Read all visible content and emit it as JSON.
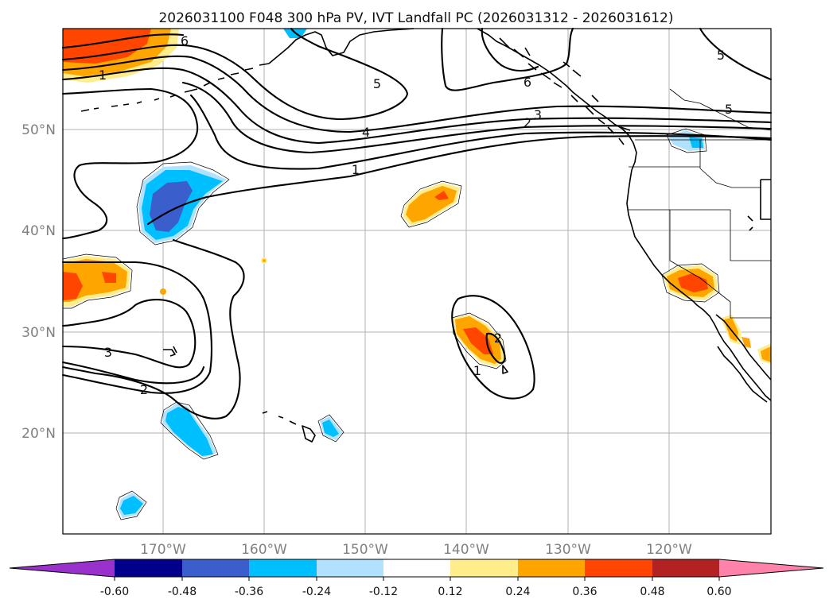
{
  "title": "2026031100 F048 300 hPa PV, IVT Landfall PC (2026031312 - 2026031612)",
  "lat_labels": [
    "50°N",
    "40°N",
    "30°N",
    "20°N"
  ],
  "lon_labels": [
    "170°W",
    "160°W",
    "150°W",
    "140°W",
    "130°W",
    "120°W"
  ],
  "contour_labels": {
    "c6a": "6",
    "c1a": "1",
    "c5a": "5",
    "c4a": "4",
    "c1b": "1",
    "c6b": "6",
    "c3a": "3",
    "c2a": "2",
    "c5b": "5",
    "c5c": "5",
    "c3b": "3",
    "c2b": "2",
    "c2c": "2",
    "c1c": "1"
  },
  "colorbar": {
    "labels": [
      "-0.60",
      "-0.48",
      "-0.36",
      "-0.24",
      "-0.12",
      "0.12",
      "0.24",
      "0.36",
      "0.48",
      "0.60"
    ],
    "colors": [
      "#9932cc",
      "#00008b",
      "#3a5fcd",
      "#00bfff",
      "#b0e2ff",
      "#ffffff",
      "#ffec8b",
      "#ffa500",
      "#ff4500",
      "#b22222",
      "#ff82ab"
    ]
  }
}
